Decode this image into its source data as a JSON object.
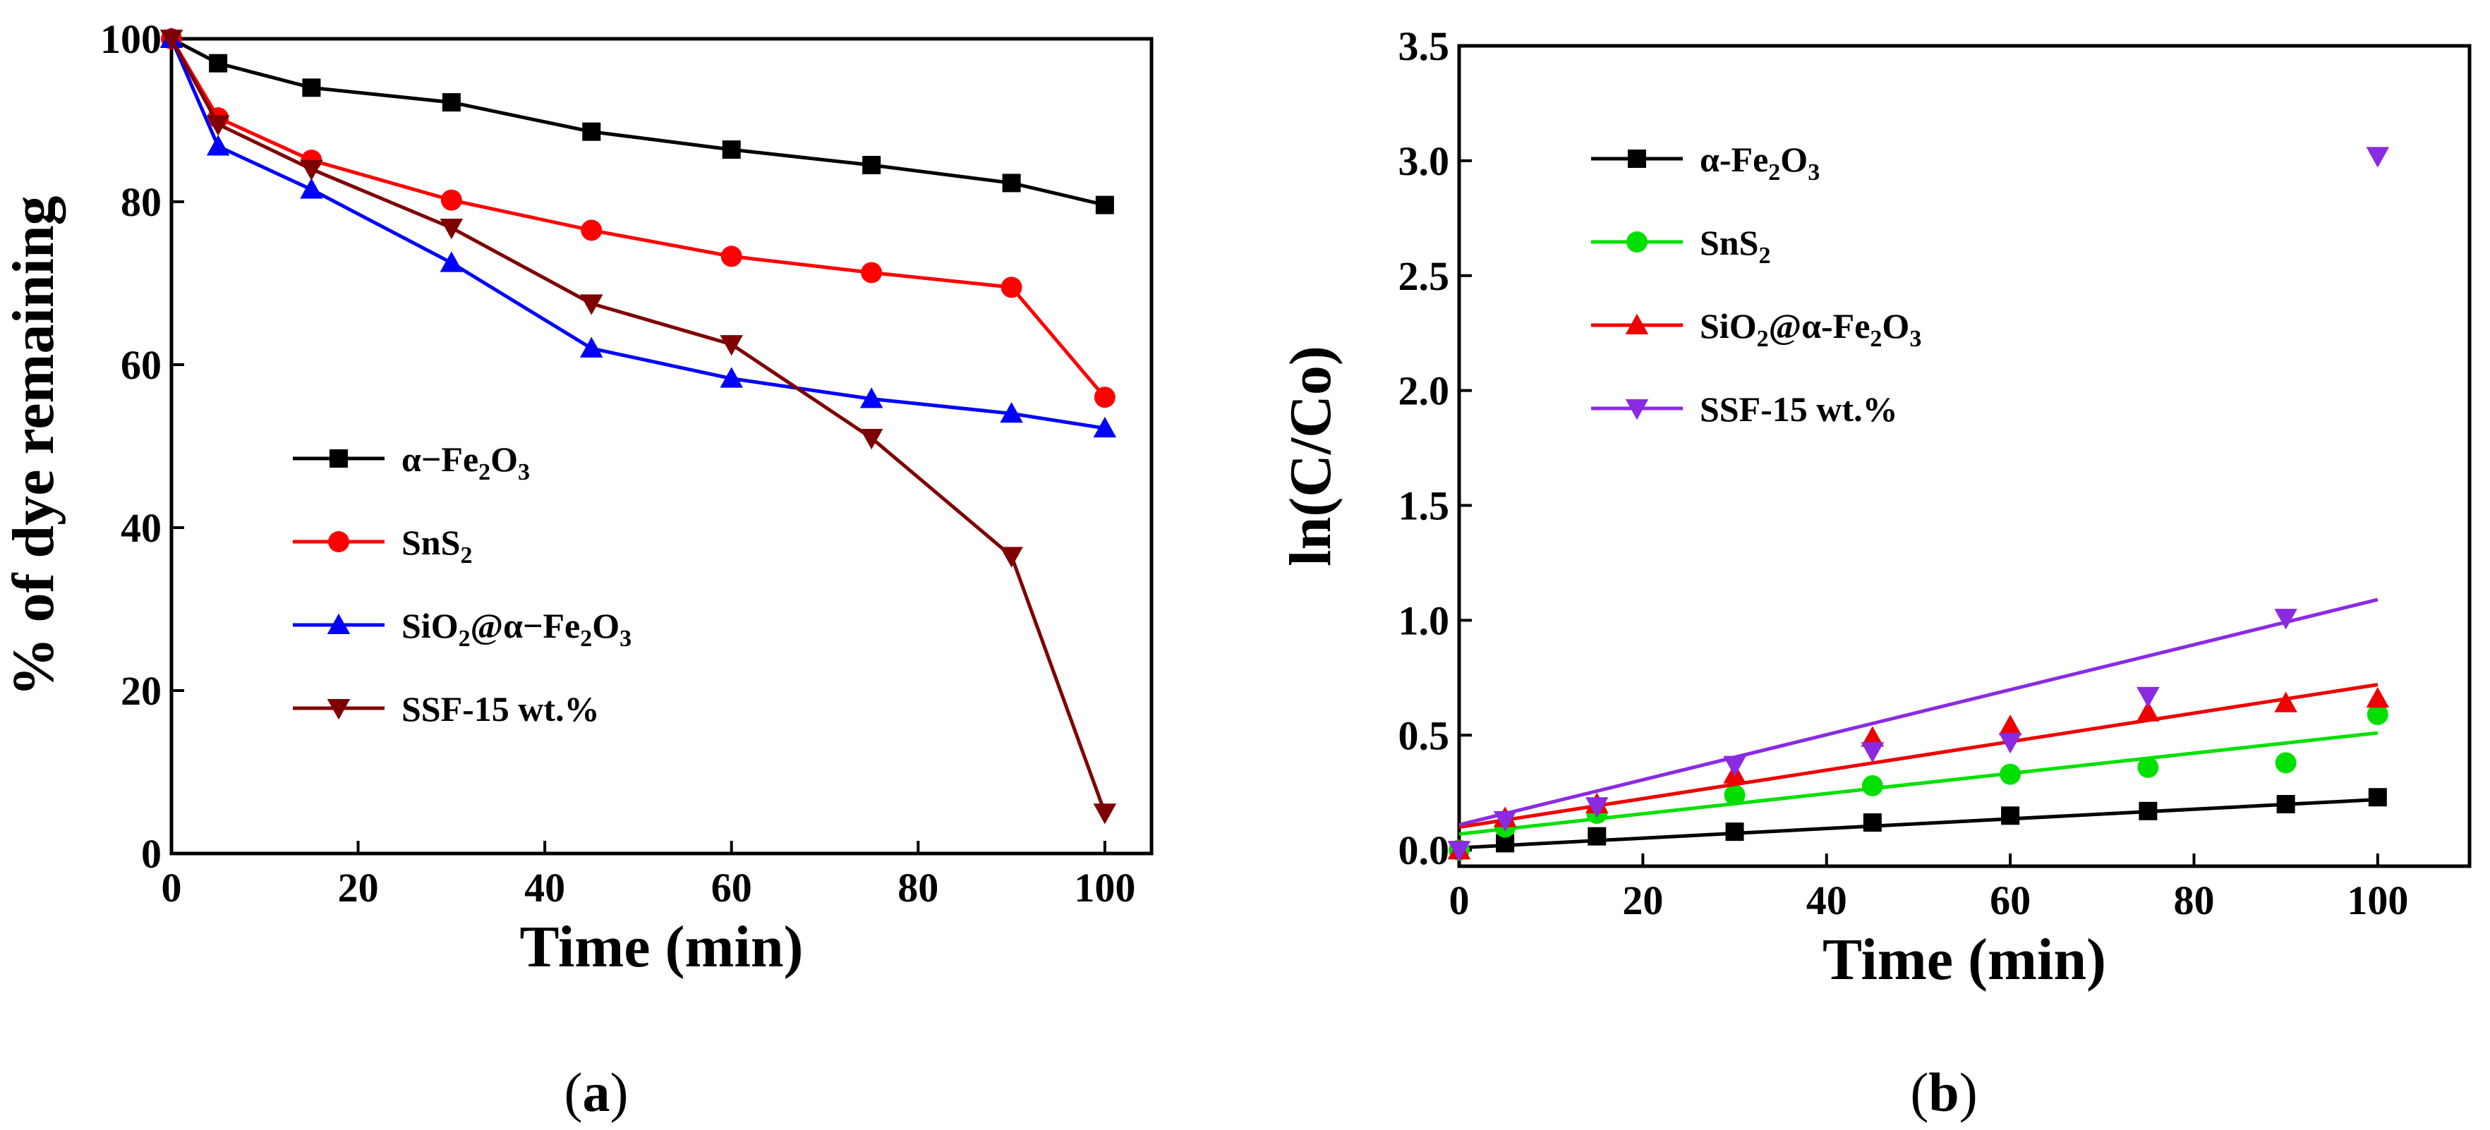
{
  "chart_data": [
    {
      "type": "line",
      "panel_label": "a",
      "title": "",
      "xlabel": "Time (min)",
      "ylabel": "% of dye remaining",
      "xlim": [
        0,
        105
      ],
      "ylim": [
        0,
        100
      ],
      "xticks": [
        0,
        20,
        40,
        60,
        80,
        100
      ],
      "yticks": [
        0,
        20,
        40,
        60,
        80,
        100
      ],
      "legend_position": "center-left",
      "x": [
        0,
        5,
        15,
        30,
        45,
        60,
        75,
        90,
        100
      ],
      "series": [
        {
          "name": "α-Fe2O3",
          "legend_parts": [
            [
              "α−Fe",
              ""
            ],
            [
              "2",
              "sub"
            ],
            [
              "O",
              ""
            ],
            [
              "3",
              "sub"
            ]
          ],
          "color": "#000000",
          "marker": "square",
          "values": [
            100,
            97,
            94,
            92.2,
            88.6,
            86.4,
            84.5,
            82.3,
            79.6
          ]
        },
        {
          "name": "SnS2",
          "legend_parts": [
            [
              "SnS",
              ""
            ],
            [
              "2",
              "sub"
            ]
          ],
          "color": "#ff0000",
          "marker": "circle",
          "values": [
            100,
            90.3,
            85.1,
            80.2,
            76.5,
            73.3,
            71.3,
            69.5,
            56
          ]
        },
        {
          "name": "SiO2@α-Fe2O3",
          "legend_parts": [
            [
              "SiO",
              ""
            ],
            [
              "2",
              "sub"
            ],
            [
              "@α−Fe",
              ""
            ],
            [
              "2",
              "sub"
            ],
            [
              "O",
              ""
            ],
            [
              "3",
              "sub"
            ]
          ],
          "color": "#0000ff",
          "marker": "triangle-up",
          "values": [
            100,
            86.8,
            81.5,
            72.5,
            62,
            58.3,
            55.8,
            54,
            52.2
          ]
        },
        {
          "name": "SSF-15 wt.%",
          "legend_parts": [
            [
              "SSF-15 wt.%",
              ""
            ]
          ],
          "color": "#7f0000",
          "marker": "triangle-down",
          "values": [
            100,
            89.5,
            84,
            76.8,
            67.5,
            62.5,
            51,
            36.5,
            5
          ]
        }
      ]
    },
    {
      "type": "scatter",
      "panel_label": "b",
      "title": "",
      "xlabel": "Time (min)",
      "ylabel": "ln(C/Co)",
      "xlim": [
        0,
        110
      ],
      "ylim": [
        -0.07,
        3.5
      ],
      "xticks": [
        0,
        20,
        40,
        60,
        80,
        100
      ],
      "yticks": [
        0.0,
        0.5,
        1.0,
        1.5,
        2.0,
        2.5,
        3.0,
        3.5
      ],
      "legend_position": "top-left",
      "x": [
        0,
        5,
        15,
        30,
        45,
        60,
        75,
        90,
        100
      ],
      "series": [
        {
          "name": "α-Fe2O3",
          "legend_parts": [
            [
              "α-Fe",
              ""
            ],
            [
              "2",
              "sub"
            ],
            [
              "O",
              ""
            ],
            [
              "3",
              "sub"
            ]
          ],
          "color": "#000000",
          "marker": "square",
          "values": [
            0,
            0.03,
            0.06,
            0.08,
            0.12,
            0.15,
            0.17,
            0.2,
            0.23
          ],
          "fit": {
            "x": [
              0,
              100
            ],
            "y": [
              0.01,
              0.22
            ]
          }
        },
        {
          "name": "SnS2",
          "legend_parts": [
            [
              "SnS",
              ""
            ],
            [
              "2",
              "sub"
            ]
          ],
          "color": "#00e000",
          "marker": "circle",
          "values": [
            0,
            0.1,
            0.16,
            0.24,
            0.28,
            0.33,
            0.36,
            0.38,
            0.59
          ],
          "fit": {
            "x": [
              0,
              100
            ],
            "y": [
              0.07,
              0.51
            ]
          }
        },
        {
          "name": "SiO2@α-Fe2O3",
          "legend_parts": [
            [
              "SiO",
              ""
            ],
            [
              "2",
              "sub"
            ],
            [
              "@α-Fe",
              ""
            ],
            [
              "2",
              "sub"
            ],
            [
              "O",
              ""
            ],
            [
              "3",
              "sub"
            ]
          ],
          "color": "#ee0000",
          "marker": "triangle-up",
          "values": [
            0,
            0.14,
            0.2,
            0.33,
            0.49,
            0.54,
            0.6,
            0.64,
            0.66
          ],
          "fit": {
            "x": [
              0,
              100
            ],
            "y": [
              0.1,
              0.72
            ]
          }
        },
        {
          "name": "SSF-15 wt.%",
          "legend_parts": [
            [
              "SSF-15 wt.%",
              ""
            ]
          ],
          "color": "#8a2be2",
          "marker": "triangle-down",
          "values": [
            0,
            0.13,
            0.19,
            0.37,
            0.43,
            0.47,
            0.67,
            1.01,
            3.02
          ],
          "fit": {
            "x": [
              0,
              100
            ],
            "y": [
              0.11,
              1.09
            ]
          }
        }
      ]
    }
  ]
}
